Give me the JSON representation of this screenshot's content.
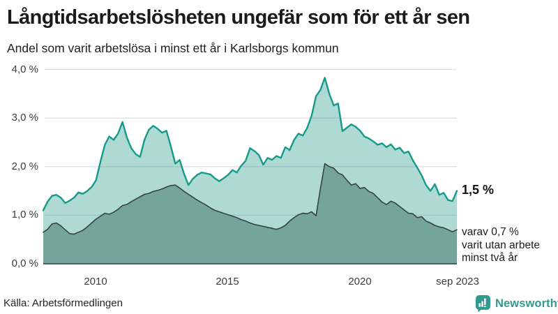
{
  "header": {
    "title": "Långtidsarbetslösheten ungefär som för ett år sen",
    "subtitle": "Andel som varit arbetslösa i minst ett år i Karlsborgs kommun"
  },
  "chart_data": {
    "type": "area",
    "title": "Långtidsarbetslösheten ungefär som för ett år sen",
    "subtitle": "Andel som varit arbetslösa i minst ett år i Karlsborgs kommun",
    "unit": "%",
    "x_axis": {
      "ticks": [
        "2010",
        "2015",
        "2020",
        "sep 2023"
      ],
      "tick_years": [
        2010,
        2015,
        2020,
        2023.667
      ],
      "range_years": [
        2008.0,
        2023.667
      ],
      "points_evenly_spaced_months": 2
    },
    "y_axis": {
      "ticks": [
        "4,0 %",
        "3,0 %",
        "2,0 %",
        "1,0 %",
        "0,0 %"
      ],
      "ylim": [
        0,
        4
      ],
      "gridline_values": [
        1,
        2,
        3,
        4
      ],
      "grid": true
    },
    "legend_position": "none",
    "colors": {
      "line_1yr": "#169a8b",
      "fill_1yr": "#aedad3",
      "line_2yr": "#36433f",
      "fill_2yr": "#74a49c",
      "baseline": "#535e5b",
      "gridline": "rgba(104,116,160,0.22)"
    },
    "series": [
      {
        "name": "Andel arbetslösa minst ett år",
        "end_value": "1,5 %",
        "values": [
          1.1,
          1.28,
          1.4,
          1.42,
          1.36,
          1.25,
          1.3,
          1.36,
          1.47,
          1.44,
          1.5,
          1.58,
          1.72,
          2.1,
          2.45,
          2.62,
          2.55,
          2.68,
          2.92,
          2.6,
          2.38,
          2.26,
          2.2,
          2.55,
          2.76,
          2.84,
          2.78,
          2.7,
          2.74,
          2.42,
          2.06,
          2.14,
          1.85,
          1.62,
          1.75,
          1.83,
          1.88,
          1.86,
          1.84,
          1.76,
          1.7,
          1.76,
          1.83,
          1.93,
          1.88,
          2.02,
          2.12,
          2.38,
          2.32,
          2.24,
          2.04,
          2.18,
          2.14,
          2.22,
          2.18,
          2.4,
          2.34,
          2.55,
          2.68,
          2.64,
          2.8,
          3.05,
          3.45,
          3.58,
          3.83,
          3.5,
          3.26,
          3.3,
          2.73,
          2.8,
          2.87,
          2.82,
          2.74,
          2.62,
          2.58,
          2.52,
          2.45,
          2.48,
          2.4,
          2.46,
          2.35,
          2.39,
          2.28,
          2.31,
          2.13,
          1.98,
          1.82,
          1.62,
          1.5,
          1.64,
          1.42,
          1.46,
          1.31,
          1.29,
          1.5
        ]
      },
      {
        "name": "Varav arbetslösa minst två år",
        "end_value": "0,7 %",
        "values": [
          0.65,
          0.71,
          0.82,
          0.84,
          0.78,
          0.7,
          0.62,
          0.61,
          0.65,
          0.69,
          0.76,
          0.84,
          0.92,
          0.98,
          1.04,
          1.02,
          1.06,
          1.12,
          1.2,
          1.22,
          1.28,
          1.33,
          1.38,
          1.43,
          1.45,
          1.49,
          1.51,
          1.54,
          1.58,
          1.61,
          1.62,
          1.56,
          1.49,
          1.43,
          1.37,
          1.31,
          1.26,
          1.21,
          1.15,
          1.1,
          1.07,
          1.04,
          1.01,
          0.98,
          0.95,
          0.91,
          0.88,
          0.84,
          0.81,
          0.79,
          0.77,
          0.75,
          0.73,
          0.71,
          0.74,
          0.79,
          0.88,
          0.95,
          1.01,
          1.04,
          1.03,
          1.07,
          0.99,
          1.55,
          2.06,
          2.0,
          1.97,
          1.87,
          1.83,
          1.72,
          1.62,
          1.65,
          1.55,
          1.57,
          1.49,
          1.45,
          1.36,
          1.27,
          1.22,
          1.29,
          1.25,
          1.18,
          1.11,
          1.04,
          1.03,
          0.95,
          0.97,
          0.88,
          0.84,
          0.79,
          0.76,
          0.74,
          0.7,
          0.66,
          0.7
        ]
      }
    ],
    "annotations": {
      "end_value_label": "1,5 %",
      "sub_line1": "varav 0,7 %",
      "sub_line2": "varit utan arbete",
      "sub_line3": "minst två år"
    }
  },
  "footer": {
    "source": "Källa: Arbetsförmedlingen",
    "brand": "Newsworthy"
  }
}
